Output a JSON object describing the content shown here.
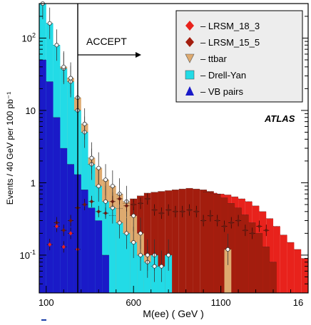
{
  "chart_data": {
    "type": "histogram",
    "xlabel": "M(ee) ( GeV )",
    "ylabel": "Events / 40 GeV per 100 pb⁻¹",
    "x_tick_labels": [
      "100",
      "600",
      "1100",
      "16"
    ],
    "y_tick_labels": [
      {
        "base": "10",
        "exp": "-1"
      },
      {
        "base": "1",
        "exp": ""
      },
      {
        "base": "10",
        "exp": ""
      },
      {
        "base": "10",
        "exp": "2"
      }
    ],
    "xlim": [
      60,
      1600
    ],
    "ylim": [
      0.03,
      300
    ],
    "yscale": "log",
    "bin_width": 40,
    "experiment_label": "ATLAS",
    "cut": {
      "x": 300,
      "label": "ACCEPT"
    },
    "legend_position": "top-right",
    "series": [
      {
        "name": "LRSM_18_3",
        "marker": "diamond",
        "color": "#e8221c",
        "x": [
          1000,
          1040,
          1080,
          1120,
          1160,
          1200,
          1240,
          1280,
          1320,
          1360,
          1400,
          1440,
          1480,
          1520,
          1560,
          1600
        ],
        "values": [
          0.74,
          0.72,
          0.7,
          0.68,
          0.64,
          0.6,
          0.55,
          0.48,
          0.4,
          0.32,
          0.25,
          0.19,
          0.15,
          0.12,
          0.09,
          0.08
        ]
      },
      {
        "name": "LRSM_15_5",
        "marker": "diamond",
        "color": "#a31d0e",
        "x": [
          460,
          500,
          540,
          580,
          620,
          660,
          700,
          740,
          780,
          820,
          860,
          900,
          940,
          980,
          1020,
          1060,
          1100,
          1140,
          1180,
          1220,
          1260,
          1300,
          1340,
          1380
        ],
        "values": [
          0.35,
          0.44,
          0.52,
          0.6,
          0.66,
          0.72,
          0.74,
          0.76,
          0.78,
          0.8,
          0.82,
          0.84,
          0.82,
          0.8,
          0.76,
          0.7,
          0.62,
          0.52,
          0.45,
          0.36,
          0.28,
          0.2,
          0.13,
          0.08
        ]
      },
      {
        "name": "ttbar",
        "marker": "triangle-down",
        "color": "#deaa6f",
        "x": [
          180,
          220,
          260,
          300,
          340,
          380,
          420,
          460,
          500,
          540,
          580,
          620,
          660,
          700,
          1120
        ],
        "values": [
          40,
          28,
          15,
          6.5,
          2.2,
          1.6,
          1.1,
          0.9,
          0.7,
          0.55,
          0.35,
          0.2,
          0.1,
          0.07,
          0.12
        ]
      },
      {
        "name": "Drell-Yan",
        "marker": "square",
        "color": "#22dbe6",
        "x": [
          60,
          100,
          140,
          180,
          220,
          260,
          300,
          340,
          380,
          420,
          460,
          500,
          540,
          580,
          620,
          660,
          700,
          740,
          780
        ],
        "values": [
          300,
          160,
          80,
          38,
          25,
          10,
          5,
          1.8,
          0.9,
          0.55,
          0.45,
          0.28,
          0.2,
          0.15,
          0.1,
          0.08,
          0.1,
          0.07,
          0.1
        ]
      },
      {
        "name": "VB pairs",
        "marker": "triangle-up",
        "color": "#1a1ac8",
        "x": [
          60,
          100,
          140,
          180,
          220,
          260,
          300,
          340,
          380,
          420
        ],
        "values": [
          50,
          25,
          8,
          3,
          1.8,
          1.3,
          0.8,
          0.45,
          0.3,
          0.1
        ]
      }
    ],
    "data_points": {
      "x": [
        140,
        180,
        220,
        260,
        300,
        340,
        380,
        420,
        460,
        500,
        540,
        580,
        620,
        660,
        700,
        740,
        780,
        820,
        860,
        900,
        940,
        980,
        1020,
        1060,
        1100,
        1140,
        1180,
        1220,
        1260,
        1300,
        1340
      ],
      "values": [
        0.28,
        0.22,
        0.3,
        0.45,
        0.5,
        0.55,
        0.4,
        0.38,
        0.55,
        0.6,
        0.48,
        0.5,
        0.52,
        0.6,
        0.42,
        0.38,
        0.42,
        0.4,
        0.4,
        0.42,
        0.4,
        0.3,
        0.35,
        0.3,
        0.25,
        0.28,
        0.3,
        0.22,
        0.2,
        0.25,
        0.22
      ]
    },
    "extra_points_lowmass": {
      "x": [
        100,
        140,
        180,
        220,
        260
      ],
      "values": [
        0.14,
        0.25,
        0.13,
        0.2,
        0.12
      ]
    }
  }
}
